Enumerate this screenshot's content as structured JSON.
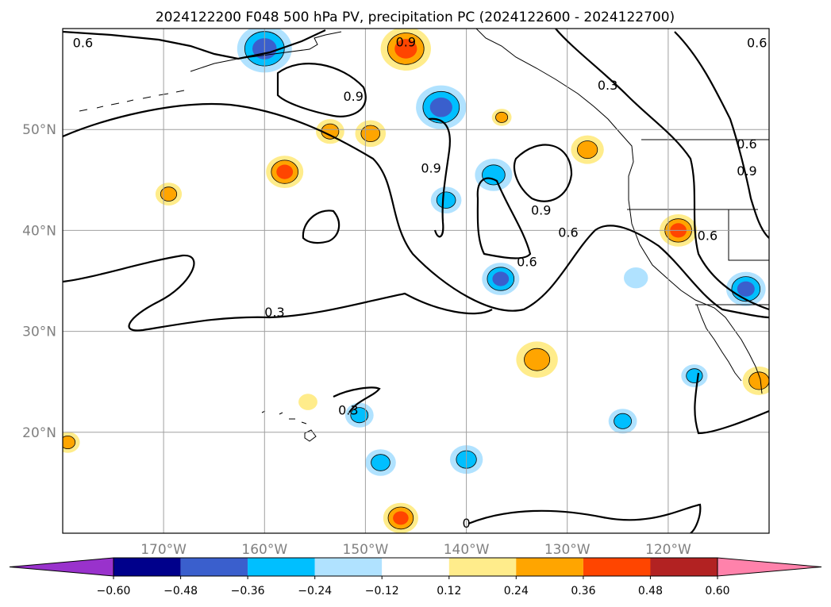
{
  "title": "2024122200 F048 500 hPa PV, precipitation PC (2024122600 - 2024122700)",
  "map": {
    "lon_range": [
      -180,
      -110
    ],
    "lat_range": [
      10,
      60
    ],
    "lon_ticks": [
      {
        "value": -170,
        "label": "170°W"
      },
      {
        "value": -160,
        "label": "160°W"
      },
      {
        "value": -150,
        "label": "150°W"
      },
      {
        "value": -140,
        "label": "140°W"
      },
      {
        "value": -130,
        "label": "130°W"
      },
      {
        "value": -120,
        "label": "120°W"
      }
    ],
    "lat_ticks": [
      {
        "value": 20,
        "label": "20°N"
      },
      {
        "value": 30,
        "label": "30°N"
      },
      {
        "value": 40,
        "label": "40°N"
      },
      {
        "value": 50,
        "label": "50°N"
      }
    ],
    "gridlines": true,
    "tick_label_color": "#808080",
    "contour_labels": [
      {
        "text": "0.6",
        "lon": -178,
        "lat": 58.5
      },
      {
        "text": "0.9",
        "lon": -146,
        "lat": 58.6
      },
      {
        "text": "0.9",
        "lon": -151.2,
        "lat": 53.2
      },
      {
        "text": "0.3",
        "lon": -126,
        "lat": 54.3
      },
      {
        "text": "0.6",
        "lon": -111.2,
        "lat": 58.5
      },
      {
        "text": "0.9",
        "lon": -143.5,
        "lat": 46.1
      },
      {
        "text": "0.9",
        "lon": -132.6,
        "lat": 41.9
      },
      {
        "text": "0.6",
        "lon": -129.9,
        "lat": 39.7
      },
      {
        "text": "0.6",
        "lon": -134,
        "lat": 36.8
      },
      {
        "text": "0.6",
        "lon": -116.1,
        "lat": 39.4
      },
      {
        "text": "0.6",
        "lon": -112.2,
        "lat": 48.5
      },
      {
        "text": "0.9",
        "lon": -112.2,
        "lat": 45.8
      },
      {
        "text": "0.3",
        "lon": -159,
        "lat": 31.8
      },
      {
        "text": "0.3",
        "lon": -151.7,
        "lat": 22.1
      },
      {
        "text": "0",
        "lon": -140,
        "lat": 10.9
      }
    ]
  },
  "colorbar": {
    "ticks": [
      "−0.60",
      "−0.48",
      "−0.36",
      "−0.24",
      "−0.12",
      "0.12",
      "0.24",
      "0.36",
      "0.48",
      "0.60"
    ],
    "colors": [
      "#9932cc",
      "#00008b",
      "#3a5fcd",
      "#00bfff",
      "#b0e2ff",
      "#ffffff",
      "#ffec8b",
      "#ffa500",
      "#ff4500",
      "#b22222",
      "#ff82ab"
    ],
    "extend": "both"
  },
  "precip_anomalies": [
    {
      "lon": -160,
      "lat": 58,
      "level": -0.48,
      "spread": 1.0
    },
    {
      "lon": -146,
      "lat": 58,
      "level": 0.48,
      "spread": 0.9
    },
    {
      "lon": -142.5,
      "lat": 52.2,
      "level": -0.48,
      "spread": 0.9
    },
    {
      "lon": -153.5,
      "lat": 49.8,
      "level": 0.36,
      "spread": 0.4
    },
    {
      "lon": -149.5,
      "lat": 49.6,
      "level": 0.36,
      "spread": 0.45
    },
    {
      "lon": -158,
      "lat": 45.8,
      "level": 0.48,
      "spread": 0.6
    },
    {
      "lon": -169.5,
      "lat": 43.6,
      "level": 0.36,
      "spread": 0.35
    },
    {
      "lon": -137.3,
      "lat": 45.5,
      "level": -0.36,
      "spread": 0.6
    },
    {
      "lon": -142,
      "lat": 43,
      "level": -0.36,
      "spread": 0.45
    },
    {
      "lon": -136.5,
      "lat": 51.2,
      "level": 0.36,
      "spread": 0.2
    },
    {
      "lon": -128,
      "lat": 48,
      "level": 0.36,
      "spread": 0.5
    },
    {
      "lon": -119,
      "lat": 40,
      "level": 0.48,
      "spread": 0.6
    },
    {
      "lon": -112.3,
      "lat": 34.2,
      "level": -0.48,
      "spread": 0.65
    },
    {
      "lon": -123.2,
      "lat": 35.3,
      "level": -0.24,
      "spread": 0.3
    },
    {
      "lon": -136.6,
      "lat": 35.2,
      "level": -0.48,
      "spread": 0.6
    },
    {
      "lon": -133,
      "lat": 27.2,
      "level": 0.36,
      "spread": 0.7
    },
    {
      "lon": -117.4,
      "lat": 25.6,
      "level": -0.36,
      "spread": 0.35
    },
    {
      "lon": -111,
      "lat": 25.1,
      "level": 0.36,
      "spread": 0.5
    },
    {
      "lon": -124.5,
      "lat": 21.1,
      "level": -0.36,
      "spread": 0.4
    },
    {
      "lon": -150.6,
      "lat": 21.7,
      "level": -0.36,
      "spread": 0.4
    },
    {
      "lon": -155.7,
      "lat": 23,
      "level": 0.24,
      "spread": 0.18
    },
    {
      "lon": -148.5,
      "lat": 17,
      "level": -0.36,
      "spread": 0.45
    },
    {
      "lon": -140,
      "lat": 17.3,
      "level": -0.36,
      "spread": 0.5
    },
    {
      "lon": -146.5,
      "lat": 11.5,
      "level": 0.48,
      "spread": 0.55
    },
    {
      "lon": -179.5,
      "lat": 19,
      "level": 0.36,
      "spread": 0.3
    }
  ]
}
